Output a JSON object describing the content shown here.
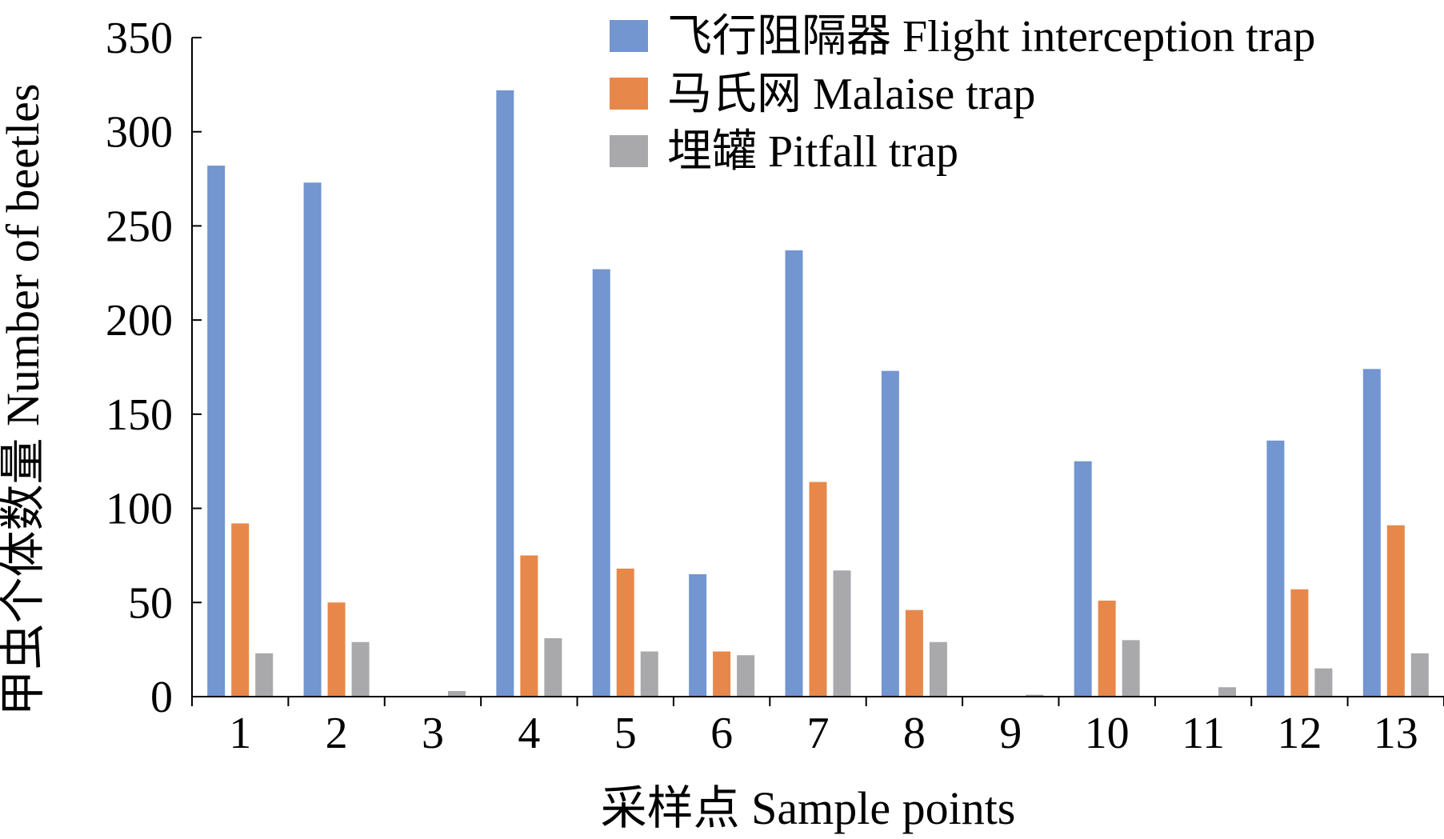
{
  "chart_data": {
    "type": "bar",
    "xlabel": "采样点 Sample points",
    "ylabel": "甲虫个体数量 Number of beetles",
    "ylim": [
      0,
      350
    ],
    "yticks": [
      0,
      50,
      100,
      150,
      200,
      250,
      300,
      350
    ],
    "categories": [
      "1",
      "2",
      "3",
      "4",
      "5",
      "6",
      "7",
      "8",
      "9",
      "10",
      "11",
      "12",
      "13"
    ],
    "legend_position": "top-right",
    "grid": false,
    "series": [
      {
        "name": "飞行阻隔器 Flight interception trap",
        "color": "#7395D0",
        "values": [
          282,
          273,
          0,
          322,
          227,
          65,
          237,
          173,
          0,
          125,
          0,
          136,
          174
        ]
      },
      {
        "name": "马氏网 Malaise trap",
        "color": "#E7884A",
        "values": [
          92,
          50,
          0,
          75,
          68,
          24,
          114,
          46,
          0,
          51,
          0,
          57,
          91
        ]
      },
      {
        "name": "埋罐 Pitfall trap",
        "color": "#A9A8AB",
        "values": [
          23,
          29,
          3,
          31,
          24,
          22,
          67,
          29,
          1,
          30,
          5,
          15,
          23
        ]
      }
    ]
  }
}
